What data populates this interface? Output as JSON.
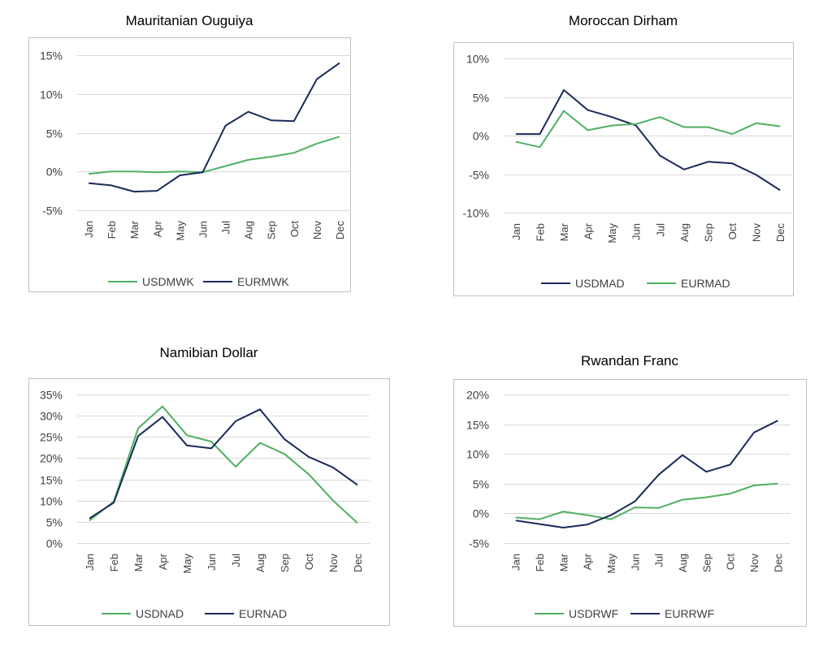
{
  "colors": {
    "usd": "#4fb062",
    "eur": "#1a2a5a",
    "grid": "#d9d9d9",
    "frame": "#bfbfbf",
    "text": "#404040"
  },
  "chart_data": [
    {
      "type": "line",
      "title": "Mauritanian Ouguiya",
      "categories": [
        "Jan",
        "Feb",
        "Mar",
        "Apr",
        "May",
        "Jun",
        "Jul",
        "Aug",
        "Sep",
        "Oct",
        "Nov",
        "Dec"
      ],
      "ylim": [
        -5,
        15
      ],
      "yticks": [
        -5,
        0,
        5,
        10,
        15
      ],
      "ytick_labels": [
        "-5%",
        "0%",
        "5%",
        "10%",
        "15%"
      ],
      "grid": true,
      "legend_position": "bottom",
      "series": [
        {
          "name": "USDMWK",
          "color_key": "usd",
          "values": [
            -0.3,
            0.0,
            0.0,
            -0.1,
            0.0,
            -0.1,
            0.7,
            1.5,
            1.9,
            2.4,
            3.6,
            4.5
          ]
        },
        {
          "name": "EURMWK",
          "color_key": "eur",
          "values": [
            -1.5,
            -1.8,
            -2.6,
            -2.5,
            -0.5,
            -0.1,
            5.9,
            7.7,
            6.6,
            6.5,
            11.9,
            14.0
          ]
        }
      ]
    },
    {
      "type": "line",
      "title": "Moroccan Dirham",
      "categories": [
        "Jan",
        "Feb",
        "Mar",
        "Apr",
        "May",
        "Jun",
        "Jul",
        "Aug",
        "Sep",
        "Oct",
        "Nov",
        "Dec"
      ],
      "ylim": [
        -10,
        10
      ],
      "yticks": [
        -10,
        -5,
        0,
        5,
        10
      ],
      "ytick_labels": [
        "-10%",
        "-5%",
        "0%",
        "5%",
        "10%"
      ],
      "grid": true,
      "legend_position": "bottom",
      "series": [
        {
          "name": "USDMAD",
          "color_key": "eur",
          "values": [
            0.2,
            0.2,
            5.9,
            3.3,
            2.4,
            1.3,
            -2.6,
            -4.4,
            -3.4,
            -3.6,
            -5.1,
            -7.1
          ]
        },
        {
          "name": "EURMAD",
          "color_key": "usd",
          "values": [
            -0.8,
            -1.5,
            3.2,
            0.7,
            1.3,
            1.5,
            2.4,
            1.1,
            1.1,
            0.2,
            1.6,
            1.2
          ]
        }
      ]
    },
    {
      "type": "line",
      "title": "Namibian Dollar",
      "categories": [
        "Jan",
        "Feb",
        "Mar",
        "Apr",
        "May",
        "Jun",
        "Jul",
        "Aug",
        "Sep",
        "Oct",
        "Nov",
        "Dec"
      ],
      "ylim": [
        0,
        35
      ],
      "yticks": [
        0,
        5,
        10,
        15,
        20,
        25,
        30,
        35
      ],
      "ytick_labels": [
        "0%",
        "5%",
        "10%",
        "15%",
        "20%",
        "25%",
        "30%",
        "35%"
      ],
      "grid": true,
      "legend_position": "bottom",
      "series": [
        {
          "name": "USDNAD",
          "color_key": "usd",
          "values": [
            5.3,
            9.8,
            27.0,
            32.2,
            25.4,
            23.9,
            18.0,
            23.6,
            21.0,
            16.2,
            10.0,
            4.7
          ]
        },
        {
          "name": "EURNAD",
          "color_key": "eur",
          "values": [
            5.8,
            9.5,
            25.2,
            29.7,
            23.0,
            22.3,
            28.7,
            31.5,
            24.5,
            20.3,
            17.8,
            13.7
          ]
        }
      ]
    },
    {
      "type": "line",
      "title": "Rwandan Franc",
      "categories": [
        "Jan",
        "Feb",
        "Mar",
        "Apr",
        "May",
        "Jun",
        "Jul",
        "Aug",
        "Sep",
        "Oct",
        "Nov",
        "Dec"
      ],
      "ylim": [
        -5,
        20
      ],
      "yticks": [
        -5,
        0,
        5,
        10,
        15,
        20
      ],
      "ytick_labels": [
        "-5%",
        "0%",
        "5%",
        "10%",
        "15%",
        "20%"
      ],
      "grid": true,
      "legend_position": "bottom",
      "series": [
        {
          "name": "USDRWF",
          "color_key": "usd",
          "values": [
            -0.7,
            -1.0,
            0.3,
            -0.3,
            -1.0,
            1.0,
            0.9,
            2.3,
            2.7,
            3.3,
            4.7,
            5.0
          ]
        },
        {
          "name": "EURRWF",
          "color_key": "eur",
          "values": [
            -1.2,
            -1.8,
            -2.4,
            -1.9,
            -0.3,
            2.0,
            6.5,
            9.8,
            7.0,
            8.2,
            13.6,
            15.6
          ]
        }
      ]
    }
  ]
}
